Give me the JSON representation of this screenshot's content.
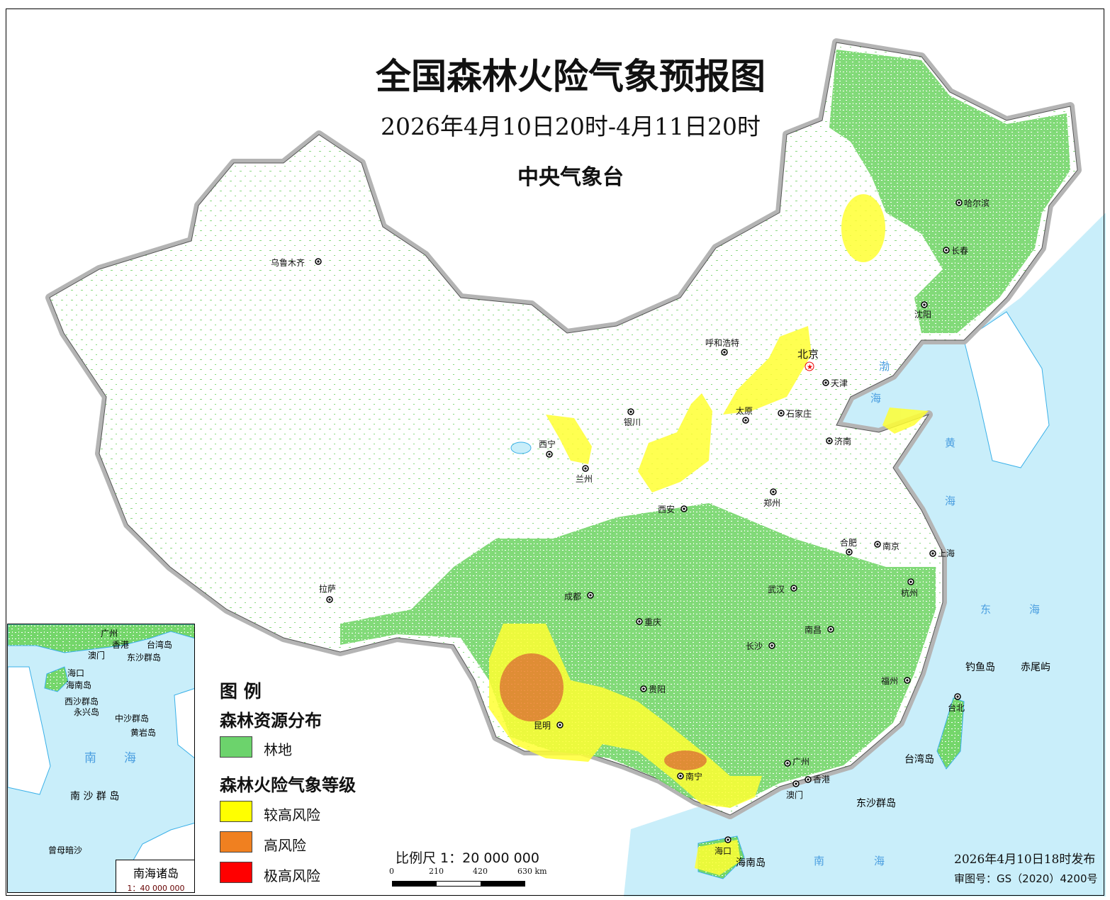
{
  "title": "全国森林火险气象预报图",
  "period": "2026年4月10日20时-4月11日20时",
  "issuer": "中央气象台",
  "legend": {
    "heading": "图 例",
    "forest_section": "森林资源分布",
    "forest_item": {
      "label": "林地",
      "color": "#6cd36c"
    },
    "risk_section": "森林火险气象等级",
    "risk_items": [
      {
        "label": "较高风险",
        "color": "#ffff00"
      },
      {
        "label": "高风险",
        "color": "#f08020"
      },
      {
        "label": "极高风险",
        "color": "#ff0000"
      }
    ]
  },
  "scale": {
    "label": "比例尺 1：20 000 000",
    "ticks": [
      "0",
      "210",
      "420",
      "630 km"
    ]
  },
  "issued": "2026年4月10日18时发布",
  "map_number": "审图号：GS（2020）4200号",
  "cities": [
    "乌鲁木齐",
    "拉萨",
    "西宁",
    "兰州",
    "银川",
    "呼和浩特",
    "北京",
    "天津",
    "石家庄",
    "太原",
    "济南",
    "郑州",
    "西安",
    "合肥",
    "南京",
    "上海",
    "武汉",
    "杭州",
    "成都",
    "重庆",
    "长沙",
    "南昌",
    "贵阳",
    "福州",
    "昆明",
    "南宁",
    "广州",
    "香港",
    "澳门",
    "海口",
    "台北",
    "哈尔滨",
    "长春",
    "沈阳"
  ],
  "place_labels": [
    "钓鱼岛",
    "赤尾屿",
    "台湾岛",
    "东沙群岛",
    "海南岛"
  ],
  "sea_labels": [
    "黄",
    "海",
    "东",
    "海",
    "南",
    "海",
    "渤",
    "海"
  ],
  "inset": {
    "title": "南海诸岛",
    "scale": "1：40 000 000",
    "labels": [
      "广州",
      "香港",
      "台湾岛",
      "澳门",
      "东沙群岛",
      "海口",
      "海南岛",
      "西沙群岛",
      "永兴岛",
      "中沙群岛",
      "黄岩岛",
      "南 沙 群 岛",
      "曾母暗沙"
    ],
    "sea_labels": [
      "南",
      "海"
    ]
  },
  "colors": {
    "sea": "#c9eefa",
    "forest": "#6cd36c",
    "border_shadow": "#b0b0b0"
  }
}
